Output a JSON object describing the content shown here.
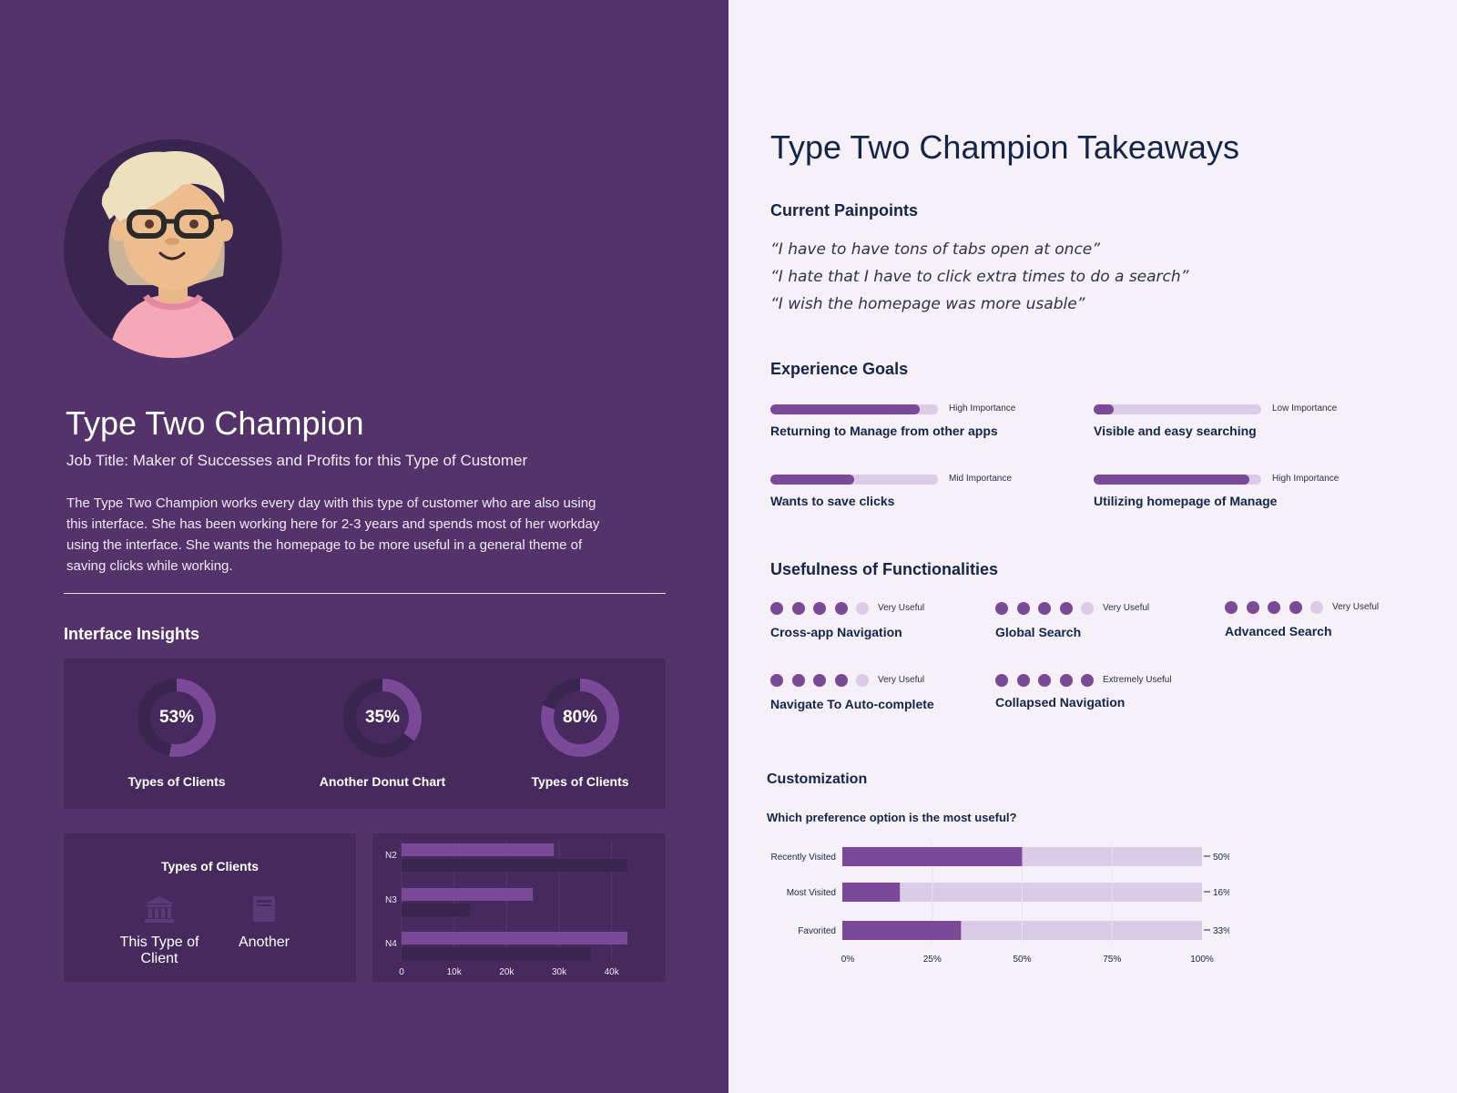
{
  "persona": {
    "name": "Type Two Champion",
    "job_title": "Job Title: Maker of Successes and Profits for this Type of Customer",
    "bio": "The Type Two Champion works every day with this type of customer who are also using this interface. She has been working here for 2-3 years and spends most of her workday using the interface. She wants the homepage to be more useful in a general theme of saving clicks while working."
  },
  "insights": {
    "heading": "Interface Insights",
    "donuts": [
      {
        "value": "53%",
        "fraction": 0.53,
        "label": "Types of Clients"
      },
      {
        "value": "35%",
        "fraction": 0.35,
        "label": "Another Donut Chart"
      },
      {
        "value": "80%",
        "fraction": 0.8,
        "label": "Types of Clients"
      }
    ],
    "clients": {
      "title": "Types of Clients",
      "items": [
        {
          "label": "This Type of Client",
          "icon": "bank-icon"
        },
        {
          "label": "Another",
          "icon": "book-icon"
        }
      ]
    }
  },
  "takeaways": {
    "title": "Type Two Champion Takeaways",
    "painpoints_heading": "Current Painpoints",
    "quotes": [
      "“I have to have tons of tabs open at once”",
      "“I hate that I have to click extra times to do a search”",
      "“I wish the homepage was more usable”"
    ],
    "goals_heading": "Experience Goals",
    "goals": [
      {
        "name": "Returning to Manage from other apps",
        "importance": "High Importance",
        "level": 0.89
      },
      {
        "name": "Visible and easy searching",
        "importance": "Low Importance",
        "level": 0.12
      },
      {
        "name": "Wants to save clicks",
        "importance": "Mid Importance",
        "level": 0.5
      },
      {
        "name": "Utilizing homepage of Manage",
        "importance": "High Importance",
        "level": 0.93
      }
    ],
    "usefulness_heading": "Usefulness of Functionalities",
    "functionalities": [
      {
        "name": "Cross-app Navigation",
        "rating": "Very Useful",
        "score": 4,
        "max": 5
      },
      {
        "name": "Global Search",
        "rating": "Very Useful",
        "score": 4,
        "max": 5
      },
      {
        "name": "Advanced Search",
        "rating": "Very Useful",
        "score": 4,
        "max": 5
      },
      {
        "name": "Navigate To Auto-complete",
        "rating": "Very Useful",
        "score": 4,
        "max": 5
      },
      {
        "name": "Collapsed Navigation",
        "rating": "Extremely Useful",
        "score": 5,
        "max": 5
      }
    ],
    "customization_heading": "Customization",
    "question": "Which preference option is the most useful?"
  },
  "colors": {
    "left_bg": "#54336a",
    "panel_bg": "#472a5d",
    "accent": "#7a4a98",
    "accent_light": "#dccbe6",
    "dark_track": "#3a2450",
    "right_bg": "#f6f0f8",
    "navy": "#14254a"
  },
  "chart_data": [
    {
      "type": "bar",
      "orientation": "horizontal",
      "categories": [
        "N2",
        "N3",
        "N4"
      ],
      "series": [
        {
          "values": [
            29000,
            25000,
            43000
          ]
        },
        {
          "values": [
            43000,
            13000,
            36000
          ]
        }
      ],
      "x_ticks": [
        "0",
        "10k",
        "20k",
        "30k",
        "40k"
      ],
      "xlim": [
        0,
        43000
      ],
      "grid": true
    },
    {
      "type": "bar",
      "orientation": "horizontal",
      "stacked_percent": true,
      "categories": [
        "Recently Visited",
        "Most Visited",
        "Favorited"
      ],
      "values": [
        50,
        16,
        33
      ],
      "value_labels": [
        "50%",
        "16%",
        "33%"
      ],
      "x_ticks": [
        "0%",
        "25%",
        "50%",
        "75%",
        "100%"
      ],
      "xlim": [
        0,
        100
      ],
      "grid": true
    }
  ]
}
